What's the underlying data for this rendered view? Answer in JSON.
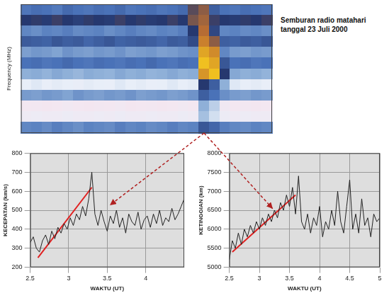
{
  "chart_data": [
    {
      "type": "heatmap",
      "title": "Semburan radio matahari tanggal 23 Juli 2000",
      "y_label": "Frequency (MHz)",
      "zlim": [
        0,
        100
      ],
      "tick_labels": false,
      "cells": [
        [
          54,
          56,
          55,
          53,
          57,
          55,
          54,
          56,
          55,
          57,
          54,
          55,
          56,
          54,
          55,
          57,
          75,
          80,
          60,
          55,
          54,
          56,
          55,
          54
        ],
        [
          70,
          71,
          69,
          72,
          70,
          68,
          71,
          70,
          69,
          72,
          70,
          71,
          69,
          70,
          72,
          70,
          78,
          82,
          72,
          70,
          69,
          71,
          70,
          72
        ],
        [
          50,
          48,
          51,
          50,
          52,
          49,
          50,
          51,
          48,
          50,
          52,
          50,
          49,
          51,
          50,
          52,
          70,
          84,
          66,
          50,
          51,
          49,
          50,
          48
        ],
        [
          61,
          60,
          59,
          62,
          60,
          61,
          58,
          60,
          62,
          59,
          60,
          61,
          60,
          58,
          61,
          60,
          65,
          88,
          80,
          60,
          59,
          61,
          60,
          62
        ],
        [
          44,
          46,
          45,
          43,
          47,
          45,
          44,
          46,
          45,
          47,
          44,
          45,
          46,
          44,
          45,
          47,
          48,
          95,
          90,
          50,
          45,
          44,
          46,
          45
        ],
        [
          55,
          56,
          54,
          55,
          57,
          55,
          54,
          56,
          55,
          54,
          56,
          55,
          57,
          55,
          54,
          56,
          55,
          100,
          95,
          62,
          55,
          56,
          54,
          55
        ],
        [
          40,
          41,
          39,
          42,
          40,
          38,
          41,
          40,
          39,
          42,
          40,
          41,
          39,
          40,
          42,
          40,
          41,
          92,
          100,
          70,
          42,
          40,
          41,
          39
        ],
        [
          20,
          22,
          19,
          21,
          20,
          18,
          21,
          20,
          19,
          22,
          20,
          21,
          19,
          20,
          22,
          20,
          21,
          70,
          60,
          40,
          22,
          20,
          21,
          19
        ],
        [
          45,
          44,
          46,
          45,
          43,
          47,
          45,
          44,
          46,
          45,
          47,
          44,
          45,
          46,
          44,
          45,
          47,
          60,
          55,
          48,
          45,
          44,
          46,
          45
        ],
        [
          5,
          6,
          4,
          5,
          7,
          5,
          4,
          6,
          5,
          7,
          4,
          5,
          6,
          4,
          5,
          7,
          5,
          40,
          30,
          8,
          5,
          6,
          4,
          5
        ],
        [
          12,
          13,
          11,
          12,
          14,
          12,
          11,
          13,
          12,
          14,
          11,
          12,
          13,
          11,
          12,
          14,
          12,
          35,
          25,
          14,
          12,
          13,
          11,
          12
        ],
        [
          50,
          51,
          49,
          52,
          50,
          48,
          51,
          50,
          49,
          52,
          50,
          51,
          49,
          50,
          52,
          50,
          51,
          62,
          58,
          52,
          50,
          49,
          51,
          50
        ]
      ]
    },
    {
      "type": "line",
      "x_label": "WAKTU (UT)",
      "y_label": "KECEPATAN (km/s)",
      "grid": true,
      "xlim": [
        2.5,
        4.5
      ],
      "xticks": [
        2.5,
        3,
        3.5,
        4
      ],
      "ylim": [
        200,
        800
      ],
      "yticks": [
        200,
        300,
        400,
        500,
        600,
        700,
        800
      ],
      "series": [
        {
          "color": "#222222",
          "line_style": "solid",
          "x": [
            2.5,
            2.54,
            2.58,
            2.62,
            2.66,
            2.7,
            2.74,
            2.78,
            2.82,
            2.86,
            2.9,
            2.94,
            2.98,
            3.02,
            3.06,
            3.1,
            3.14,
            3.18,
            3.22,
            3.26,
            3.3,
            3.34,
            3.38,
            3.42,
            3.46,
            3.5,
            3.54,
            3.58,
            3.62,
            3.66,
            3.7,
            3.74,
            3.78,
            3.82,
            3.86,
            3.9,
            3.94,
            3.98,
            4.02,
            4.06,
            4.1,
            4.14,
            4.18,
            4.22,
            4.26,
            4.3,
            4.34,
            4.38,
            4.42,
            4.46,
            4.5
          ],
          "values": [
            330,
            360,
            300,
            280,
            340,
            370,
            320,
            390,
            350,
            410,
            380,
            430,
            400,
            460,
            420,
            480,
            450,
            520,
            470,
            560,
            700,
            480,
            420,
            500,
            440,
            390,
            470,
            430,
            500,
            410,
            460,
            380,
            480,
            440,
            420,
            490,
            400,
            450,
            470,
            410,
            480,
            430,
            500,
            420,
            460,
            440,
            510,
            450,
            480,
            520,
            560
          ]
        },
        {
          "color": "#e02020",
          "line_style": "solid",
          "x": [
            2.6,
            3.3
          ],
          "values": [
            250,
            620
          ]
        }
      ]
    },
    {
      "type": "line",
      "x_label": "WAKTU (UT)",
      "y_label": "KETINGGIAN (km)",
      "grid": true,
      "xlim": [
        2.5,
        5
      ],
      "xticks": [
        2.5,
        3,
        3.5,
        4,
        4.5,
        5
      ],
      "ylim": [
        5000,
        8000
      ],
      "yticks": [
        5000,
        5500,
        6000,
        6500,
        7000,
        7500,
        8000
      ],
      "series": [
        {
          "color": "#222222",
          "line_style": "solid",
          "x": [
            2.5,
            2.55,
            2.6,
            2.65,
            2.7,
            2.75,
            2.8,
            2.85,
            2.9,
            2.95,
            3,
            3.05,
            3.1,
            3.15,
            3.2,
            3.25,
            3.3,
            3.35,
            3.4,
            3.45,
            3.5,
            3.55,
            3.6,
            3.65,
            3.7,
            3.75,
            3.8,
            3.85,
            3.9,
            3.95,
            4,
            4.05,
            4.1,
            4.15,
            4.2,
            4.25,
            4.3,
            4.35,
            4.4,
            4.45,
            4.5,
            4.55,
            4.6,
            4.65,
            4.7,
            4.75,
            4.8,
            4.85,
            4.9,
            4.95,
            5
          ],
          "values": [
            5200,
            5700,
            5500,
            5900,
            5600,
            6000,
            5800,
            6100,
            5900,
            6200,
            6000,
            6300,
            6100,
            6400,
            6200,
            6500,
            6300,
            6700,
            6500,
            6900,
            6600,
            7100,
            6400,
            7400,
            6200,
            6000,
            6400,
            5900,
            6300,
            6100,
            6600,
            5800,
            6200,
            6000,
            6500,
            6100,
            7000,
            6200,
            5900,
            6600,
            7300,
            6000,
            6400,
            5900,
            6800,
            6100,
            6300,
            5800,
            6400,
            6200,
            6300
          ]
        },
        {
          "color": "#e02020",
          "line_style": "solid",
          "x": [
            2.55,
            3.6
          ],
          "values": [
            5400,
            6900
          ]
        }
      ]
    }
  ]
}
